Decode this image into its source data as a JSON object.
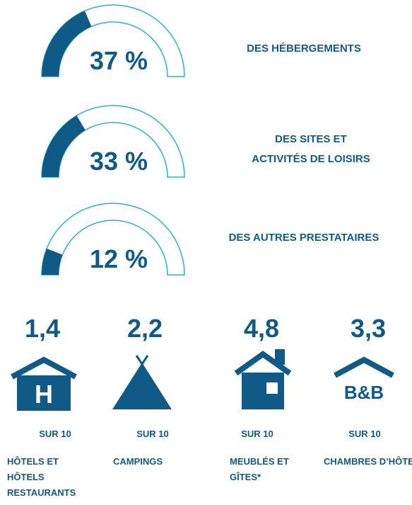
{
  "gauges": [
    {
      "value": 37,
      "value_label": "37 %",
      "label": [
        "DES HÉBERGEMENTS"
      ]
    },
    {
      "value": 33,
      "value_label": "33 %",
      "label": [
        "DES SITES ET",
        "ACTIVITÉS DE LOISIRS"
      ]
    },
    {
      "value": 12,
      "value_label": "12 %",
      "label": [
        "DES AUTRES PRESTATAIRES"
      ]
    }
  ],
  "gauge_max": 100,
  "ratings": [
    {
      "score": "1,4",
      "unit": "SUR 10",
      "name": [
        "HÔTELS ET",
        "HÔTELS",
        "RESTAURANTS"
      ]
    },
    {
      "score": "2,2",
      "unit": "SUR 10",
      "name": [
        "CAMPINGS"
      ]
    },
    {
      "score": "4,8",
      "unit": "SUR 10",
      "name": [
        "MEUBLÉS ET",
        "GÎTES*"
      ]
    },
    {
      "score": "3,3",
      "unit": "SUR 10",
      "name": [
        "CHAMBRES D’HÔTES"
      ],
      "icon_text": "B&B"
    }
  ]
}
